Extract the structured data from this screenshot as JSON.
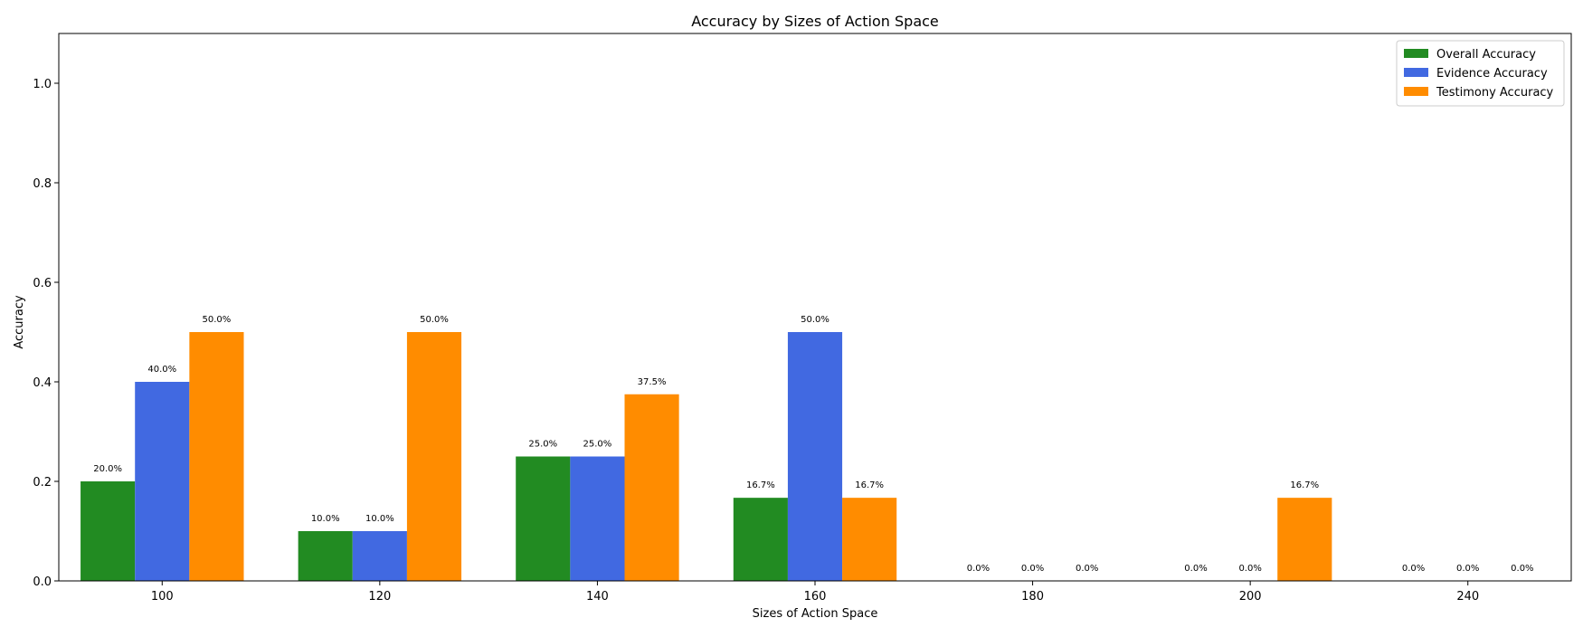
{
  "chart_data": {
    "type": "bar",
    "title": "Accuracy by Sizes of Action Space",
    "xlabel": "Sizes of Action Space",
    "ylabel": "Accuracy",
    "ylim": [
      0,
      1.1
    ],
    "yticks": [
      0.0,
      0.2,
      0.4,
      0.6,
      0.8,
      1.0
    ],
    "ytick_labels": [
      "0.0",
      "0.2",
      "0.4",
      "0.6",
      "0.8",
      "1.0"
    ],
    "categories": [
      "100",
      "120",
      "140",
      "160",
      "180",
      "200",
      "240"
    ],
    "grid": false,
    "legend_position": "top-right",
    "series": [
      {
        "name": "Overall Accuracy",
        "color": "#228B22",
        "values": [
          0.2,
          0.1,
          0.25,
          0.167,
          0.0,
          0.0,
          0.0
        ],
        "labels": [
          "20.0%",
          "10.0%",
          "25.0%",
          "16.7%",
          "0.0%",
          "0.0%",
          "0.0%"
        ]
      },
      {
        "name": "Evidence Accuracy",
        "color": "#4169E1",
        "values": [
          0.4,
          0.1,
          0.25,
          0.5,
          0.0,
          0.0,
          0.0
        ],
        "labels": [
          "40.0%",
          "10.0%",
          "25.0%",
          "50.0%",
          "0.0%",
          "0.0%",
          "0.0%"
        ]
      },
      {
        "name": "Testimony Accuracy",
        "color": "#FF8C00",
        "values": [
          0.5,
          0.5,
          0.375,
          0.167,
          0.0,
          0.167,
          0.0
        ],
        "labels": [
          "50.0%",
          "50.0%",
          "37.5%",
          "16.7%",
          "0.0%",
          "16.7%",
          "0.0%"
        ]
      }
    ]
  }
}
